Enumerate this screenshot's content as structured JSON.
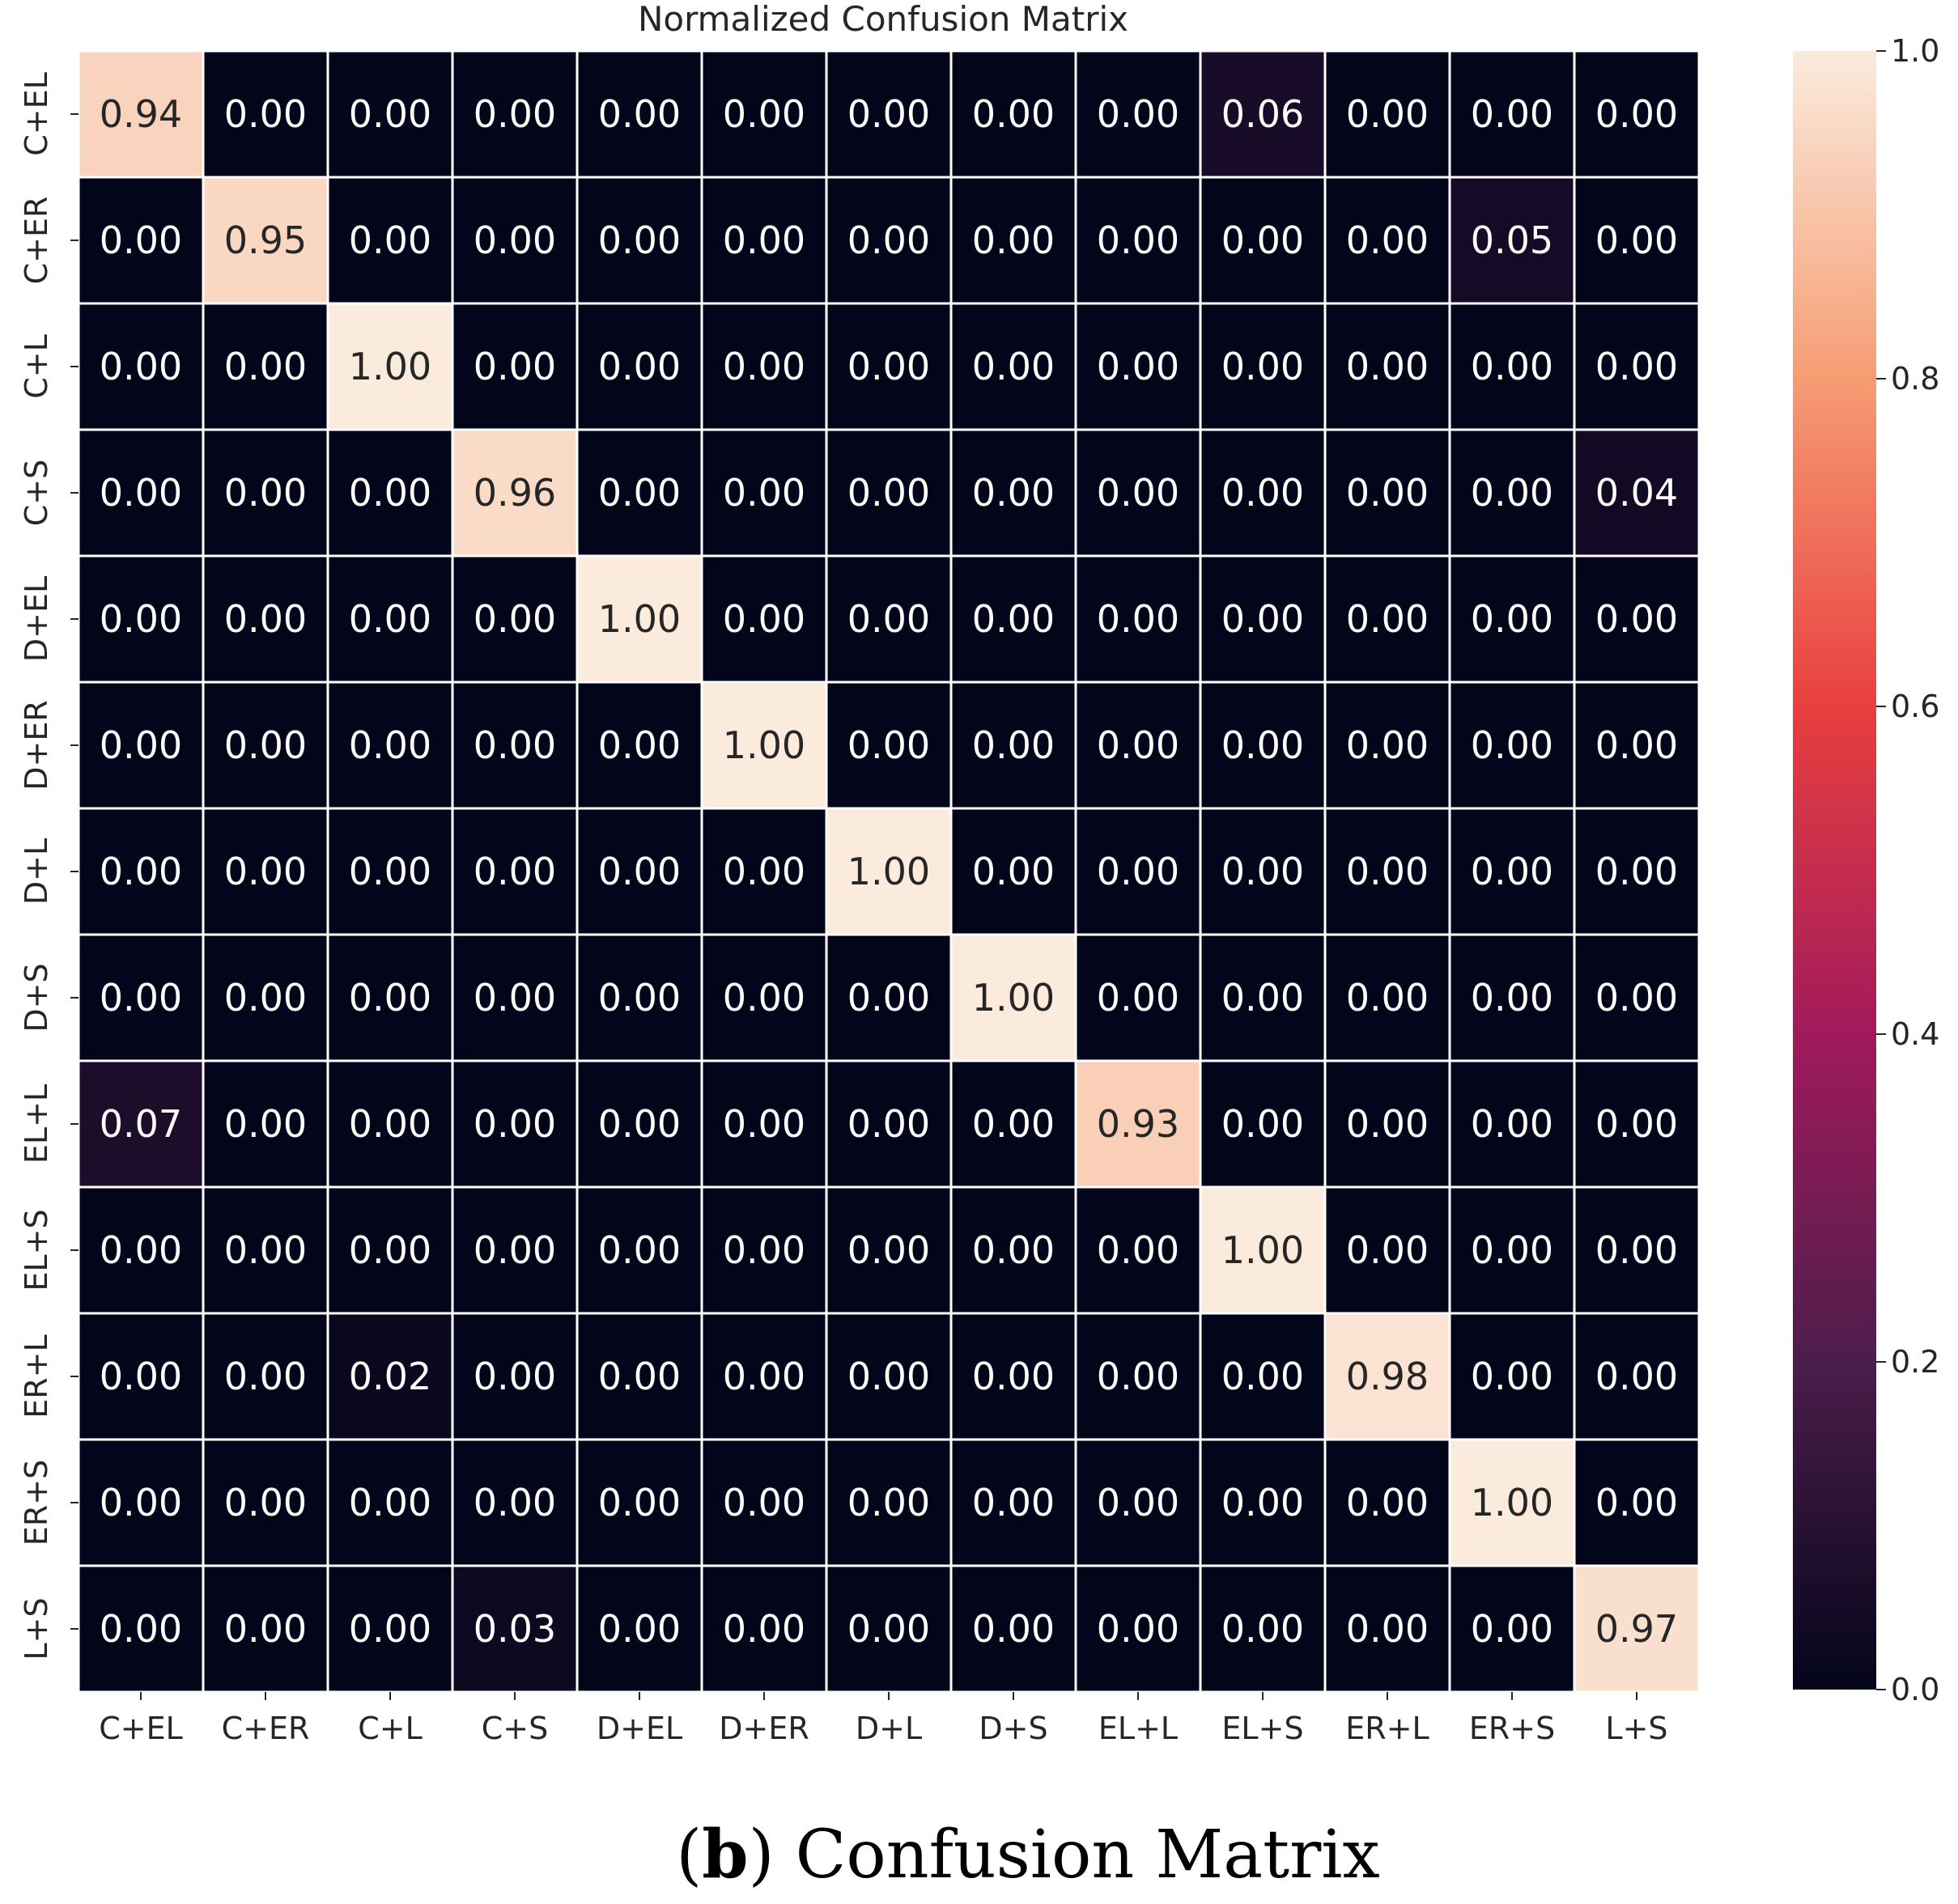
{
  "chart_data": {
    "type": "heatmap",
    "title": "Normalized Confusion Matrix",
    "labels": [
      "C+EL",
      "C+ER",
      "C+L",
      "C+S",
      "D+EL",
      "D+ER",
      "D+L",
      "D+S",
      "EL+L",
      "EL+S",
      "ER+L",
      "ER+S",
      "L+S"
    ],
    "matrix": [
      [
        0.94,
        0.0,
        0.0,
        0.0,
        0.0,
        0.0,
        0.0,
        0.0,
        0.0,
        0.06,
        0.0,
        0.0,
        0.0
      ],
      [
        0.0,
        0.95,
        0.0,
        0.0,
        0.0,
        0.0,
        0.0,
        0.0,
        0.0,
        0.0,
        0.0,
        0.05,
        0.0
      ],
      [
        0.0,
        0.0,
        1.0,
        0.0,
        0.0,
        0.0,
        0.0,
        0.0,
        0.0,
        0.0,
        0.0,
        0.0,
        0.0
      ],
      [
        0.0,
        0.0,
        0.0,
        0.96,
        0.0,
        0.0,
        0.0,
        0.0,
        0.0,
        0.0,
        0.0,
        0.0,
        0.04
      ],
      [
        0.0,
        0.0,
        0.0,
        0.0,
        1.0,
        0.0,
        0.0,
        0.0,
        0.0,
        0.0,
        0.0,
        0.0,
        0.0
      ],
      [
        0.0,
        0.0,
        0.0,
        0.0,
        0.0,
        1.0,
        0.0,
        0.0,
        0.0,
        0.0,
        0.0,
        0.0,
        0.0
      ],
      [
        0.0,
        0.0,
        0.0,
        0.0,
        0.0,
        0.0,
        1.0,
        0.0,
        0.0,
        0.0,
        0.0,
        0.0,
        0.0
      ],
      [
        0.0,
        0.0,
        0.0,
        0.0,
        0.0,
        0.0,
        0.0,
        1.0,
        0.0,
        0.0,
        0.0,
        0.0,
        0.0
      ],
      [
        0.07,
        0.0,
        0.0,
        0.0,
        0.0,
        0.0,
        0.0,
        0.0,
        0.93,
        0.0,
        0.0,
        0.0,
        0.0
      ],
      [
        0.0,
        0.0,
        0.0,
        0.0,
        0.0,
        0.0,
        0.0,
        0.0,
        0.0,
        1.0,
        0.0,
        0.0,
        0.0
      ],
      [
        0.0,
        0.0,
        0.02,
        0.0,
        0.0,
        0.0,
        0.0,
        0.0,
        0.0,
        0.0,
        0.98,
        0.0,
        0.0
      ],
      [
        0.0,
        0.0,
        0.0,
        0.0,
        0.0,
        0.0,
        0.0,
        0.0,
        0.0,
        0.0,
        0.0,
        1.0,
        0.0
      ],
      [
        0.0,
        0.0,
        0.0,
        0.03,
        0.0,
        0.0,
        0.0,
        0.0,
        0.0,
        0.0,
        0.0,
        0.0,
        0.97
      ]
    ],
    "value_format": "2 decimals",
    "colorbar": {
      "range": [
        0.0,
        1.0
      ],
      "ticks": [
        0.0,
        0.2,
        0.4,
        0.6,
        0.8,
        1.0
      ],
      "tick_labels": [
        "0.0",
        "0.2",
        "0.4",
        "0.6",
        "0.8",
        "1.0"
      ],
      "colormap": "rocket",
      "colormap_stops": [
        "#03051a",
        "#4c1d4b",
        "#a11a5b",
        "#e83f3f",
        "#f69c73",
        "#faebdd"
      ]
    },
    "xlabel": "",
    "ylabel": "",
    "grid_line_color": "#ffffff",
    "text_dark_color": "#262626",
    "text_light_color": "#ffffff"
  },
  "caption": {
    "open_paren": "(",
    "letter": "b",
    "close_paren": ")",
    "text": " Confusion Matrix"
  }
}
